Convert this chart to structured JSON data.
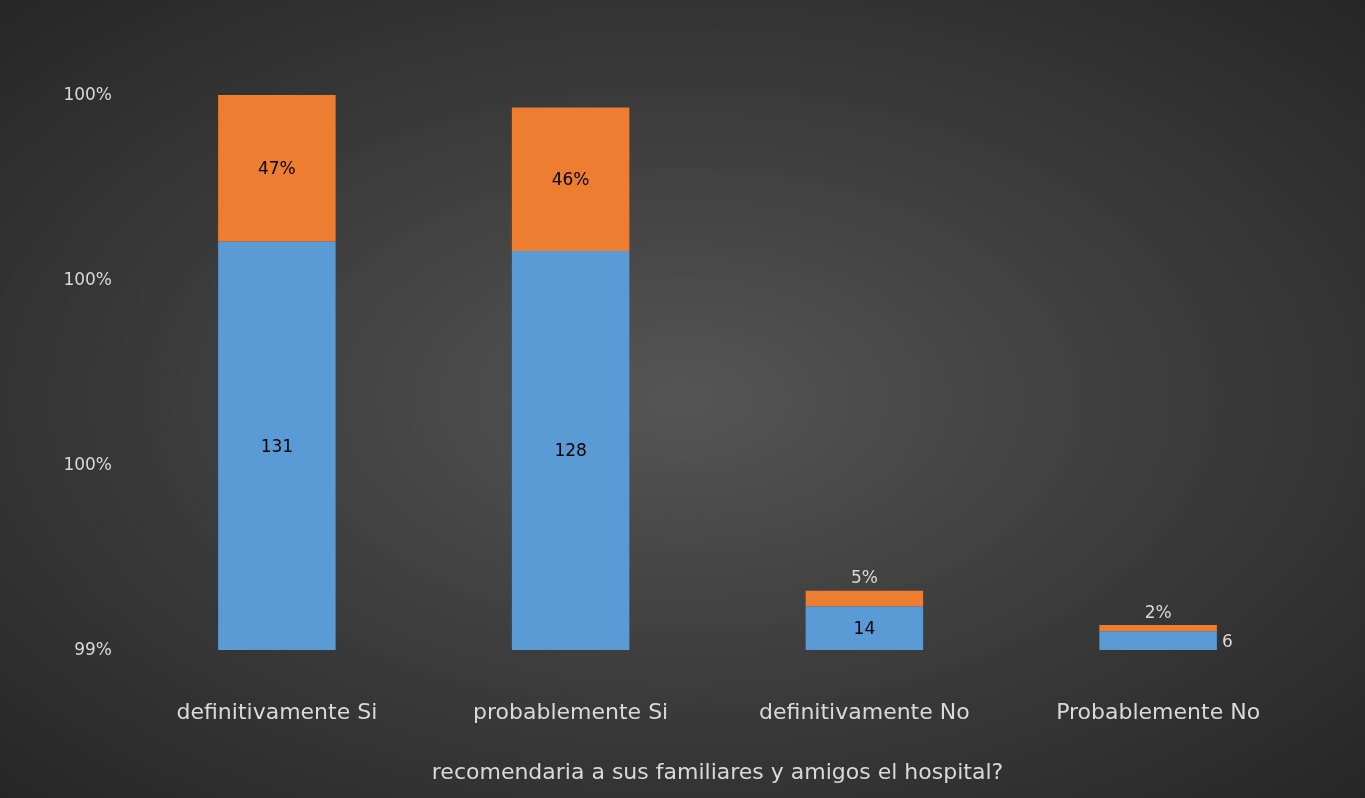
{
  "chart_data": {
    "type": "bar",
    "stacked": true,
    "categories": [
      "definitivamente Si",
      "probablemente Si",
      "definitivamente No",
      "Probablemente No"
    ],
    "xlabel": "recomendaria a sus familiares y amigos el hospital?",
    "series": [
      {
        "color": "#5b9bd5",
        "values": [
          131,
          128,
          14,
          6
        ],
        "value_labels": [
          "131",
          "128",
          "14",
          "6"
        ]
      },
      {
        "color": "#ed7d31",
        "values": [
          47,
          46,
          5,
          2
        ],
        "value_labels": [
          "47%",
          "46%",
          "5%",
          "2%"
        ]
      }
    ],
    "annotations": [
      "100%",
      "100%",
      "100%",
      "99%"
    ],
    "tick_labels": "x",
    "legend": false
  }
}
